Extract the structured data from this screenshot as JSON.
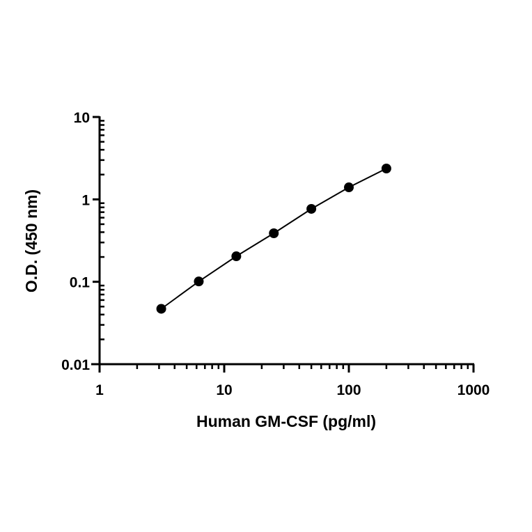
{
  "chart_data": {
    "type": "line",
    "title": "",
    "xlabel": "Human GM-CSF (pg/ml)",
    "ylabel": "O.D. (450 nm)",
    "xscale": "log",
    "yscale": "log",
    "xlim": [
      1,
      1000
    ],
    "ylim": [
      0.01,
      10
    ],
    "xticks": [
      "1",
      "10",
      "100",
      "1000"
    ],
    "yticks": [
      "0.01",
      "0.1",
      "1",
      "10"
    ],
    "grid": false,
    "legend": null,
    "series": [
      {
        "name": "Human GM-CSF standard curve",
        "marker": "filled-circle",
        "color": "#000000",
        "x": [
          3.125,
          6.25,
          12.5,
          25,
          50,
          100,
          200
        ],
        "y": [
          0.047,
          0.101,
          0.204,
          0.388,
          0.767,
          1.4,
          2.37
        ]
      }
    ]
  }
}
